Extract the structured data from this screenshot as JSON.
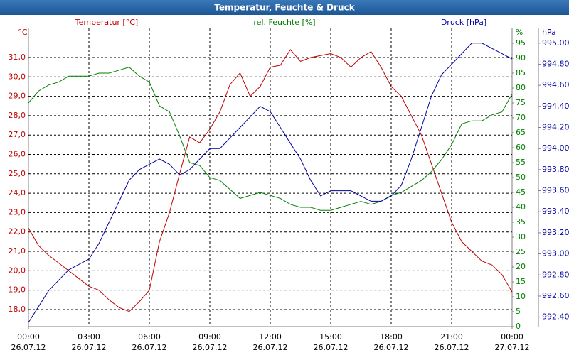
{
  "chart_data": {
    "type": "line",
    "title": "Temperatur, Feuchte & Druck",
    "xlim": [
      0,
      24
    ],
    "xticks": [
      {
        "value": 0,
        "label": "00:00"
      },
      {
        "value": 3,
        "label": "03:00"
      },
      {
        "value": 6,
        "label": "06:00"
      },
      {
        "value": 9,
        "label": "09:00"
      },
      {
        "value": 12,
        "label": "12:00"
      },
      {
        "value": 15,
        "label": "15:00"
      },
      {
        "value": 18,
        "label": "18:00"
      },
      {
        "value": 21,
        "label": "21:00"
      },
      {
        "value": 24,
        "label": "00:00"
      }
    ],
    "xtick_dates": [
      "26.07.12",
      "26.07.12",
      "26.07.12",
      "26.07.12",
      "26.07.12",
      "26.07.12",
      "26.07.12",
      "26.07.12",
      "27.07.12"
    ],
    "y_label": "Temperatur [°C]",
    "y_unit": "°C",
    "ylim": [
      17.12,
      32.5
    ],
    "yticks": [
      {
        "value": 18,
        "label": "18,0"
      },
      {
        "value": 19,
        "label": "19,0"
      },
      {
        "value": 20,
        "label": "20,0"
      },
      {
        "value": 21,
        "label": "21,0"
      },
      {
        "value": 22,
        "label": "22,0"
      },
      {
        "value": 23,
        "label": "23,0"
      },
      {
        "value": 24,
        "label": "24,0"
      },
      {
        "value": 25,
        "label": "25,0"
      },
      {
        "value": 26,
        "label": "26,0"
      },
      {
        "value": 27,
        "label": "27,0"
      },
      {
        "value": 28,
        "label": "28,0"
      },
      {
        "value": 29,
        "label": "29,0"
      },
      {
        "value": 30,
        "label": "30,0"
      },
      {
        "value": 31,
        "label": "31,0"
      }
    ],
    "y2_label": "rel. Feuchte [%]",
    "y2_unit": "%",
    "y2lim": [
      0,
      100
    ],
    "y2ticks": [
      0,
      5,
      10,
      15,
      20,
      25,
      30,
      35,
      40,
      45,
      50,
      55,
      60,
      65,
      70,
      75,
      80,
      85,
      90,
      95
    ],
    "y3_label": "Druck [hPa]",
    "y3_unit": "hPa",
    "y3lim": [
      992.31,
      995.14
    ],
    "y3ticks": [
      {
        "value": 992.4,
        "label": "992,40"
      },
      {
        "value": 992.6,
        "label": "992,60"
      },
      {
        "value": 992.8,
        "label": "992,80"
      },
      {
        "value": 993.0,
        "label": "993,00"
      },
      {
        "value": 993.2,
        "label": "993,20"
      },
      {
        "value": 993.4,
        "label": "993,40"
      },
      {
        "value": 993.6,
        "label": "993,60"
      },
      {
        "value": 993.8,
        "label": "993,80"
      },
      {
        "value": 994.0,
        "label": "994,00"
      },
      {
        "value": 994.2,
        "label": "994,20"
      },
      {
        "value": 994.4,
        "label": "994,40"
      },
      {
        "value": 994.6,
        "label": "994,60"
      },
      {
        "value": 994.8,
        "label": "994,80"
      },
      {
        "value": 995.0,
        "label": "995,00"
      }
    ],
    "grid": true,
    "x": [
      0,
      0.5,
      1,
      1.5,
      2,
      2.5,
      3,
      3.5,
      4,
      4.5,
      5,
      5.5,
      6,
      6.5,
      7,
      7.5,
      8,
      8.5,
      9,
      9.5,
      10,
      10.5,
      11,
      11.5,
      12,
      12.5,
      13,
      13.5,
      14,
      14.5,
      15,
      15.5,
      16,
      16.5,
      17,
      17.5,
      18,
      18.5,
      19,
      19.5,
      20,
      20.5,
      21,
      21.5,
      22,
      22.5,
      23,
      23.5,
      24
    ],
    "series": [
      {
        "axis": "y",
        "color": "#c00000",
        "values": [
          22.2,
          21.3,
          20.8,
          20.4,
          20.0,
          19.6,
          19.2,
          19.0,
          18.5,
          18.1,
          17.9,
          18.4,
          19.0,
          21.5,
          23.0,
          25.0,
          26.9,
          26.6,
          27.3,
          28.2,
          29.6,
          30.2,
          29.0,
          29.5,
          30.5,
          30.6,
          31.4,
          30.8,
          31.0,
          31.1,
          31.2,
          31.0,
          30.5,
          31.0,
          31.3,
          30.5,
          29.5,
          29.0,
          28.0,
          27.0,
          25.5,
          24.0,
          22.5,
          21.5,
          21.0,
          20.5,
          20.3,
          19.8,
          18.9
        ]
      },
      {
        "axis": "y2",
        "color": "#008000",
        "values": [
          75,
          79,
          81,
          82,
          84,
          84,
          84,
          85,
          85,
          86,
          87,
          84,
          82,
          74,
          72,
          64,
          55,
          54,
          50,
          49,
          46,
          43,
          44,
          45,
          44,
          43,
          41,
          40,
          40,
          39,
          39,
          40,
          41,
          42,
          41,
          42,
          44,
          45,
          47,
          49,
          52,
          56,
          61,
          68,
          69,
          69,
          71,
          72,
          78
        ]
      },
      {
        "axis": "y3",
        "color": "#0000a0",
        "values": [
          992.35,
          992.5,
          992.65,
          992.75,
          992.85,
          992.9,
          992.95,
          993.1,
          993.3,
          993.5,
          993.7,
          993.8,
          993.85,
          993.9,
          993.85,
          993.75,
          993.8,
          993.9,
          994.0,
          994.0,
          994.1,
          994.2,
          994.3,
          994.4,
          994.35,
          994.2,
          994.05,
          993.9,
          993.7,
          993.55,
          993.6,
          993.6,
          993.6,
          993.55,
          993.5,
          993.5,
          993.55,
          993.65,
          993.9,
          994.2,
          994.5,
          994.7,
          994.8,
          994.9,
          995.0,
          995.0,
          994.95,
          994.9,
          994.85
        ]
      }
    ]
  }
}
